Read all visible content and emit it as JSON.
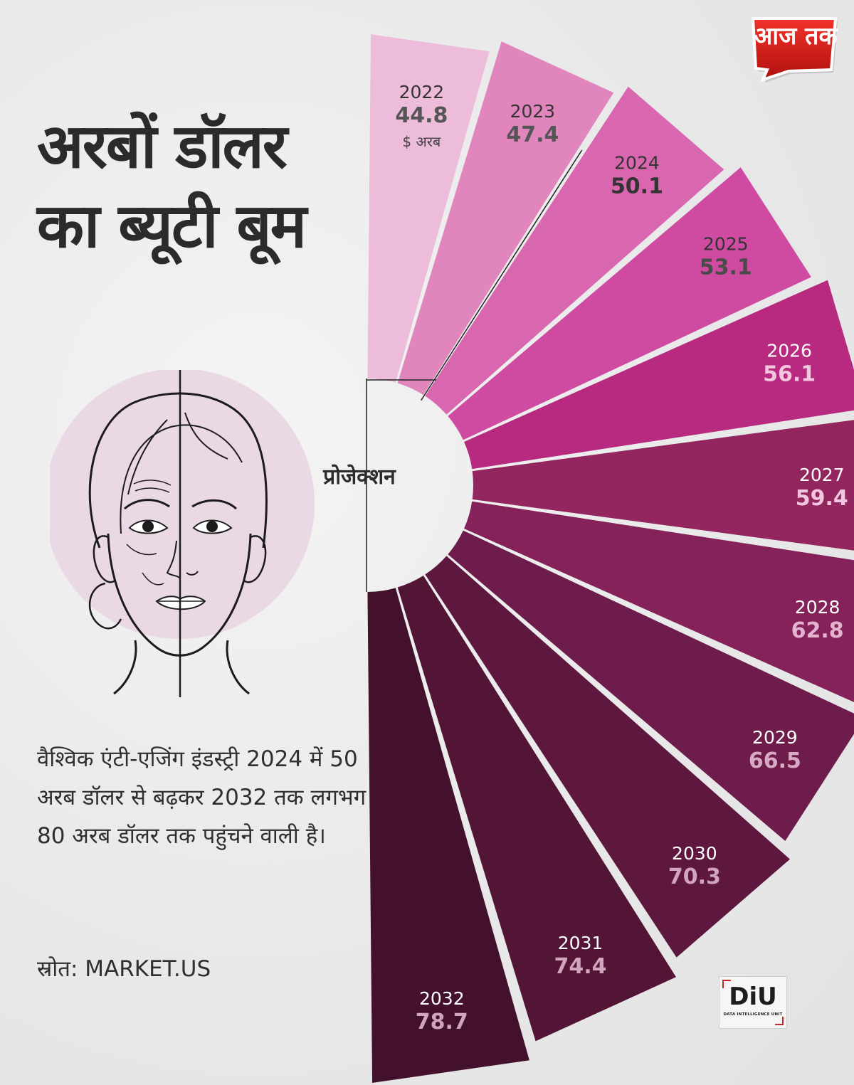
{
  "title": "अरबों डॉलर का ब्यूटी बूम",
  "description": "वैश्विक एंटी-एजिंग इंडस्ट्री 2024 में 50 अरब डॉलर से बढ़कर 2032 तक लगभग 80 अरब डॉलर तक पहुंचने वाली है।",
  "source": "स्रोत: MARKET.US",
  "logo_aajtak": "आज तक",
  "logo_diu": {
    "main": "DiU",
    "sub": "DATA INTELLIGENCE UNIT"
  },
  "chart_data": {
    "type": "bar",
    "layout": "radial-semicircle",
    "projection_label": "प्रोजेक्शन",
    "unit_label": "$ अरब",
    "categories": [
      "2022",
      "2023",
      "2024",
      "2025",
      "2026",
      "2027",
      "2028",
      "2029",
      "2030",
      "2031",
      "2032"
    ],
    "values": [
      44.8,
      47.4,
      50.1,
      53.1,
      56.1,
      59.4,
      62.8,
      66.5,
      70.3,
      74.4,
      78.7
    ],
    "value_labels": [
      "44.8",
      "47.4",
      "50.1",
      "53.1",
      "56.1",
      "59.4",
      "62.8",
      "66.5",
      "70.3",
      "74.4",
      "78.7"
    ],
    "colors": [
      "#ecbcda",
      "#e086bd",
      "#d967b0",
      "#cf4ba1",
      "#b82a80",
      "#93265e",
      "#85225a",
      "#6e1c4b",
      "#5e1840",
      "#521535",
      "#44112c"
    ],
    "year_label_colors": [
      "#333333",
      "#333333",
      "#333333",
      "#333333",
      "#ffffff",
      "#ffffff",
      "#ffffff",
      "#ffffff",
      "#ffffff",
      "#ffffff",
      "#ffffff"
    ],
    "value_label_colors": [
      "#555555",
      "#555555",
      "#333333",
      "#4a4a4a",
      "#f3c6e0",
      "#f3c6e0",
      "#e4b4cf",
      "#d8aac4",
      "#d0a5bd",
      "#d0a5bd",
      "#d0a5bd"
    ]
  }
}
